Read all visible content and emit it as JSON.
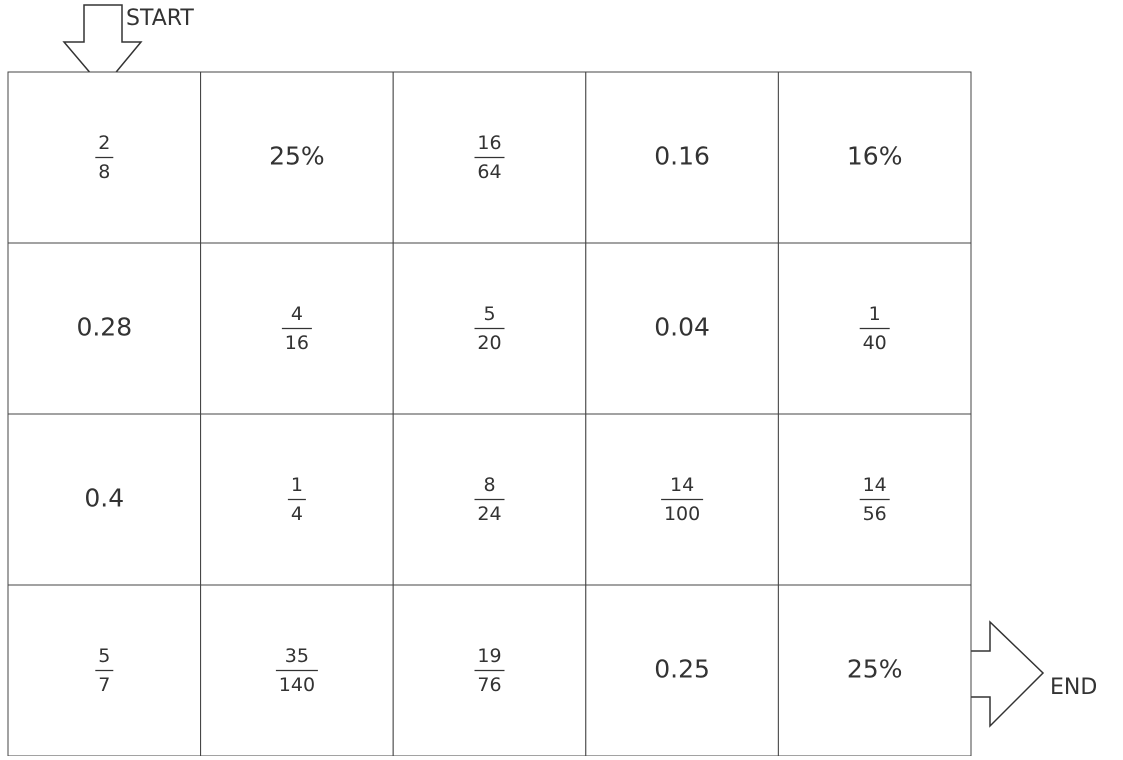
{
  "start_label": "START",
  "end_label": "END",
  "grid": {
    "rows": [
      [
        {
          "num": "2",
          "den": "8"
        },
        "25%",
        {
          "num": "16",
          "den": "64"
        },
        "0.16",
        "16%"
      ],
      [
        "0.28",
        {
          "num": "4",
          "den": "16"
        },
        {
          "num": "5",
          "den": "20"
        },
        "0.04",
        {
          "num": "1",
          "den": "40"
        }
      ],
      [
        "0.4",
        {
          "num": "1",
          "den": "4"
        },
        {
          "num": "8",
          "den": "24"
        },
        {
          "num": "14",
          "den": "100"
        },
        {
          "num": "14",
          "den": "56"
        }
      ],
      [
        {
          "num": "5",
          "den": "7"
        },
        {
          "num": "35",
          "den": "140"
        },
        {
          "num": "19",
          "den": "76"
        },
        "0.25",
        "25%"
      ]
    ]
  }
}
